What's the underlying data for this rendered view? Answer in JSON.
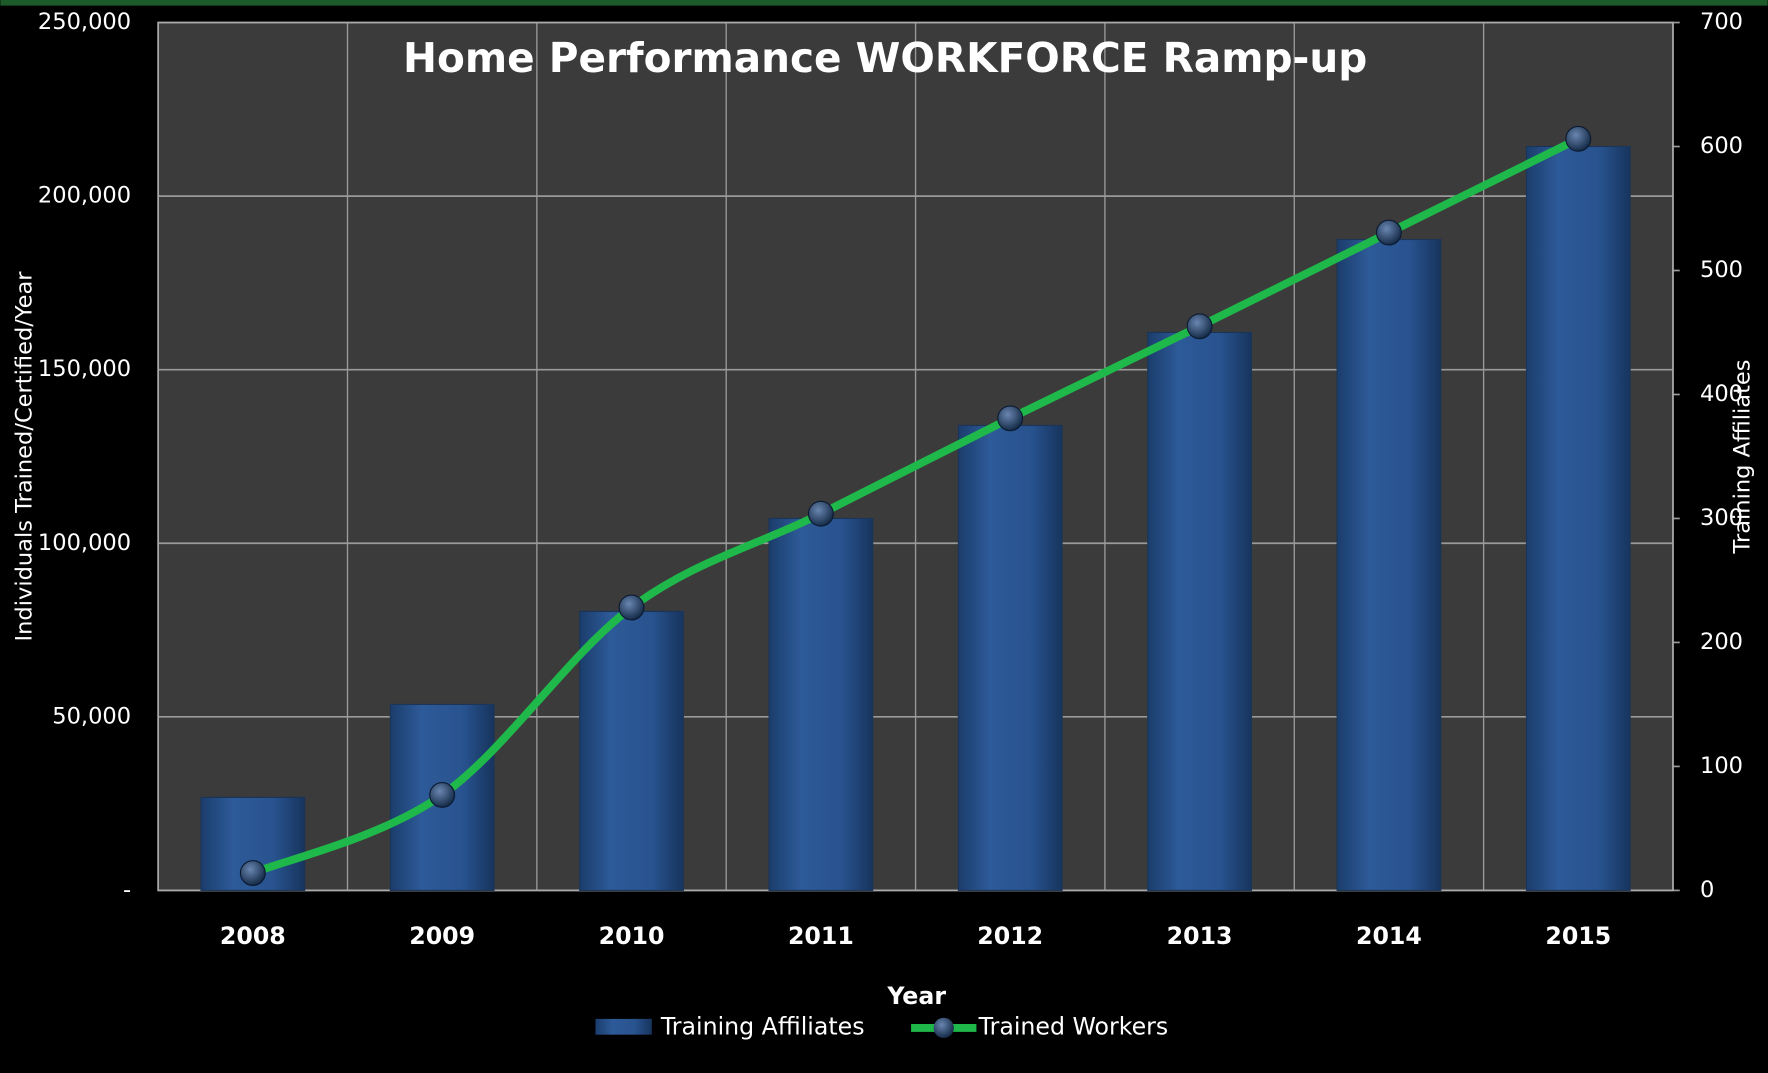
{
  "chart_data": {
    "type": "bar-line",
    "title": "Home Performance WORKFORCE Ramp-up",
    "x_label": "Year",
    "y_label": "Individuals Trained/Certified/Year",
    "y2_label": "Training Affiliates",
    "categories": [
      "2008",
      "2009",
      "2010",
      "2011",
      "2012",
      "2013",
      "2014",
      "2015"
    ],
    "series": [
      {
        "name": "Training Affiliates",
        "type": "bar",
        "axis": "y2",
        "color": "#28538f",
        "values": [
          75,
          150,
          225,
          300,
          375,
          450,
          525,
          600
        ]
      },
      {
        "name": "Trained Workers",
        "type": "line",
        "axis": "y",
        "color": "#1fb84a",
        "values": [
          5000,
          27500,
          81500,
          108500,
          136000,
          162500,
          189500,
          216500
        ]
      }
    ],
    "ylim": [
      0,
      250000
    ],
    "yticks": [
      {
        "value": 0,
        "label": "-"
      },
      {
        "value": 50000,
        "label": "50,000"
      },
      {
        "value": 100000,
        "label": "100,000"
      },
      {
        "value": 150000,
        "label": "150,000"
      },
      {
        "value": 200000,
        "label": "200,000"
      },
      {
        "value": 250000,
        "label": "250,000"
      }
    ],
    "y2lim": [
      0,
      700
    ],
    "y2ticks": [
      0,
      100,
      200,
      300,
      400,
      500,
      600,
      700
    ],
    "grid": true,
    "legend": "bottom"
  }
}
